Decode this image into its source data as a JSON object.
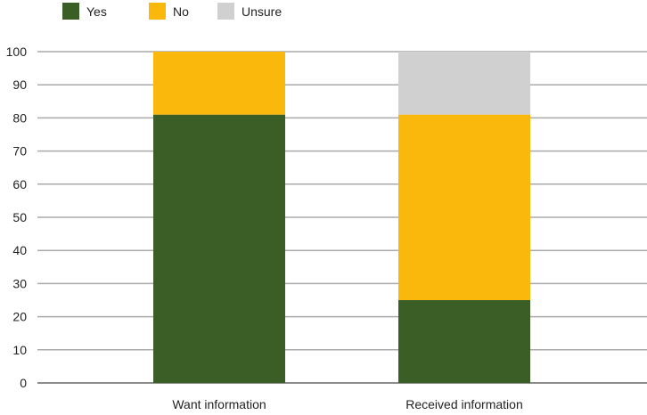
{
  "chart_data": {
    "type": "stacked-bar",
    "categories": [
      "Want information",
      "Received information"
    ],
    "series": [
      {
        "name": "Yes",
        "color": "#3a5e26",
        "values": [
          81,
          25
        ]
      },
      {
        "name": "No",
        "color": "#fbb80c",
        "values": [
          19,
          56
        ]
      },
      {
        "name": "Unsure",
        "color": "#d0d0d0",
        "values": [
          0,
          19
        ]
      }
    ],
    "ylim": [
      0,
      100
    ],
    "yticks": [
      0,
      10,
      20,
      30,
      40,
      50,
      60,
      70,
      80,
      90,
      100
    ],
    "grid": true,
    "legend": "top-left",
    "title": "",
    "xlabel": "",
    "ylabel": ""
  }
}
